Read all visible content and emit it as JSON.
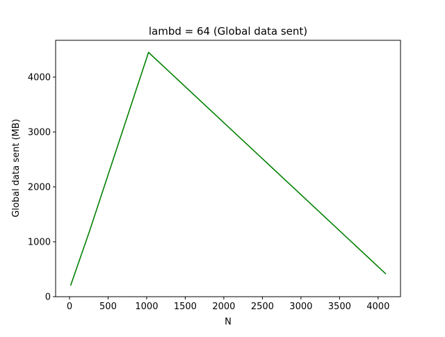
{
  "chart_data": {
    "type": "line",
    "title": "lambd = 64 (Global data sent)",
    "xlabel": "N",
    "ylabel": "Global data sent (MB)",
    "xlim": [
      -180,
      4290
    ],
    "ylim": [
      0,
      4670
    ],
    "xticks": [
      0,
      500,
      1000,
      1500,
      2000,
      2500,
      3000,
      3500,
      4000
    ],
    "yticks": [
      0,
      1000,
      2000,
      3000,
      4000
    ],
    "grid": false,
    "legend": "none",
    "series": [
      {
        "color": "#008000",
        "x": [
          16,
          256,
          1024,
          4096
        ],
        "y": [
          210,
          1180,
          4450,
          420
        ]
      }
    ]
  }
}
